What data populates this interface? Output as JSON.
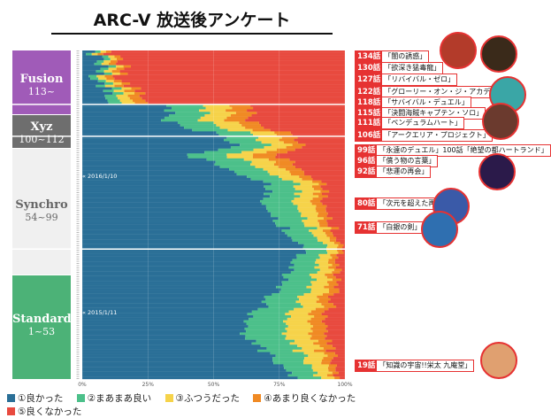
{
  "title": "ARC-V 放送後アンケート",
  "eras": [
    {
      "name": "Fusion",
      "range": "113~",
      "color": "#a05bb8"
    },
    {
      "name": "Xyz",
      "range": "100~112",
      "color": "#6e6e6e"
    },
    {
      "name": "Synchro",
      "range": "54~99",
      "color": "#f0f0f0"
    },
    {
      "name": "Standard",
      "range": "1~53",
      "color": "#4cb277"
    }
  ],
  "date_marks": [
    {
      "label": "« 2016/1/10"
    },
    {
      "label": "« 2015/1/11"
    }
  ],
  "annotations": [
    {
      "episode": "134話",
      "title": "「闇の誘惑」"
    },
    {
      "episode": "130話",
      "title": "「欲深き猛毒龍」"
    },
    {
      "episode": "127話",
      "title": "「リバイバル・ゼロ」"
    },
    {
      "episode": "122話",
      "title": "「グローリー・オン・ジ・アカデミア！」"
    },
    {
      "episode": "118話",
      "title": "「サバイバル・デュエル」"
    },
    {
      "episode": "115話",
      "title": "「決闘海賊キャプテン・ソロ」"
    },
    {
      "episode": "111話",
      "title": "「ペンデュラムハート」"
    },
    {
      "episode": "106話",
      "title": "「アークエリア・プロジェクト」"
    },
    {
      "episode": "99話",
      "title": "「永遠のデュエル」100話「絶望の都ハートランド」"
    },
    {
      "episode": "96話",
      "title": "「償う物の言葉」"
    },
    {
      "episode": "92話",
      "title": "「悲運の再会」"
    },
    {
      "episode": "80話",
      "title": "「次元を超えた再会」"
    },
    {
      "episode": "71話",
      "title": "「白銀の剣」"
    },
    {
      "episode": "19話",
      "title": "「知識の宇宙!!栄太 九庵堂」"
    }
  ],
  "colors": {
    "good": "#2a6f97",
    "okay": "#4cc08a",
    "neutral": "#f6d34a",
    "notgood": "#f08a24",
    "bad": "#e84a3f",
    "accent": "#e63232"
  },
  "chart_data": {
    "type": "bar",
    "orientation": "horizontal",
    "stacked": true,
    "x_axis_ticks": [
      "0%",
      "25%",
      "50%",
      "75%",
      "100%"
    ],
    "xlim": [
      0,
      100
    ],
    "series_names": [
      "①良かった",
      "②まあまあ良い",
      "③ふつうだった",
      "④あまり良くなかった",
      "⑤良くなかった"
    ],
    "episode_range": [
      1,
      134
    ],
    "profile": [
      {
        "episode": 1,
        "good": 82,
        "okay": 9,
        "neutral": 5,
        "notgood": 2,
        "bad": 2
      },
      {
        "episode": 19,
        "good": 60,
        "okay": 16,
        "neutral": 10,
        "notgood": 6,
        "bad": 8
      },
      {
        "episode": 53,
        "good": 85,
        "okay": 8,
        "neutral": 4,
        "notgood": 2,
        "bad": 1
      },
      {
        "episode": 54,
        "good": 84,
        "okay": 9,
        "neutral": 4,
        "notgood": 2,
        "bad": 1
      },
      {
        "episode": 71,
        "good": 70,
        "okay": 12,
        "neutral": 7,
        "notgood": 4,
        "bad": 7
      },
      {
        "episode": 80,
        "good": 72,
        "okay": 11,
        "neutral": 7,
        "notgood": 3,
        "bad": 7
      },
      {
        "episode": 92,
        "good": 40,
        "okay": 15,
        "neutral": 10,
        "notgood": 9,
        "bad": 26
      },
      {
        "episode": 96,
        "good": 60,
        "okay": 12,
        "neutral": 8,
        "notgood": 5,
        "bad": 15
      },
      {
        "episode": 99,
        "good": 55,
        "okay": 12,
        "neutral": 9,
        "notgood": 6,
        "bad": 18
      },
      {
        "episode": 100,
        "good": 52,
        "okay": 13,
        "neutral": 9,
        "notgood": 6,
        "bad": 20
      },
      {
        "episode": 106,
        "good": 30,
        "okay": 14,
        "neutral": 10,
        "notgood": 8,
        "bad": 38
      },
      {
        "episode": 111,
        "good": 34,
        "okay": 13,
        "neutral": 10,
        "notgood": 8,
        "bad": 35
      },
      {
        "episode": 112,
        "good": 32,
        "okay": 14,
        "neutral": 10,
        "notgood": 8,
        "bad": 36
      },
      {
        "episode": 113,
        "good": 10,
        "okay": 5,
        "neutral": 5,
        "notgood": 5,
        "bad": 75
      },
      {
        "episode": 118,
        "good": 8,
        "okay": 4,
        "neutral": 4,
        "notgood": 4,
        "bad": 80
      },
      {
        "episode": 122,
        "good": 6,
        "okay": 3,
        "neutral": 3,
        "notgood": 3,
        "bad": 85
      },
      {
        "episode": 127,
        "good": 7,
        "okay": 3,
        "neutral": 3,
        "notgood": 3,
        "bad": 84
      },
      {
        "episode": 134,
        "good": 5,
        "okay": 2,
        "neutral": 2,
        "notgood": 2,
        "bad": 89
      }
    ]
  }
}
